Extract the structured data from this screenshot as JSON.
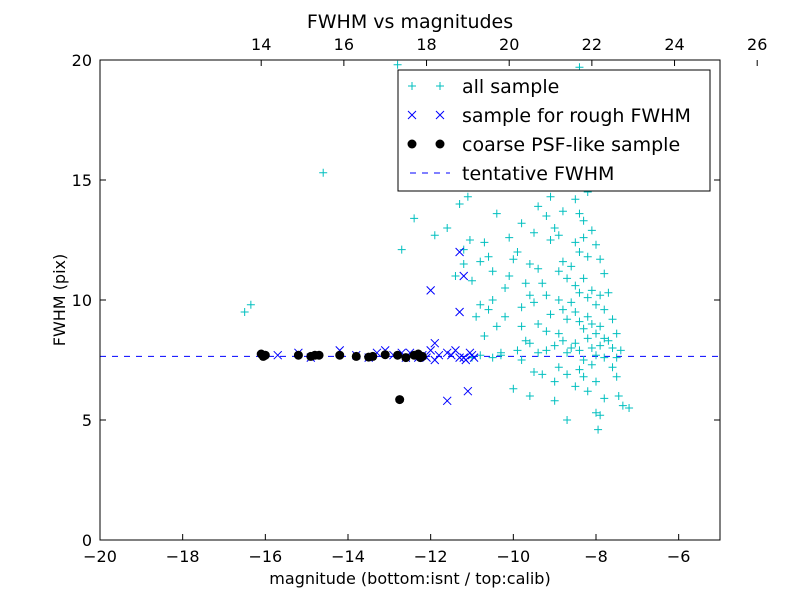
{
  "chart_data": {
    "type": "scatter",
    "title": "FWHM vs magnitudes",
    "xlabel": "magnitude (bottom:isnt / top:calib)",
    "ylabel": "FWHM (pix)",
    "xlim": [
      -20,
      -5
    ],
    "ylim": [
      0,
      20
    ],
    "x_ticks": [
      -20,
      -18,
      -16,
      -14,
      -12,
      -10,
      -8,
      -6
    ],
    "x_tick_labels": [
      "−20",
      "−18",
      "−16",
      "−14",
      "−12",
      "−10",
      "−8",
      "−6"
    ],
    "y_ticks": [
      0,
      5,
      10,
      15,
      20
    ],
    "y_tick_labels": [
      "0",
      "5",
      "10",
      "15",
      "20"
    ],
    "top_axis": {
      "ticks": [
        14,
        16,
        18,
        20,
        22,
        24,
        26
      ],
      "tick_labels": [
        "14",
        "16",
        "18",
        "20",
        "22",
        "24",
        "26"
      ],
      "offset": 30.1
    },
    "grid": false,
    "legend_position": "top-right",
    "series": [
      {
        "name": "all sample",
        "marker": "plus",
        "color": "#00bfbf",
        "points": [
          [
            -16.5,
            9.5
          ],
          [
            -16.35,
            9.8
          ],
          [
            -14.6,
            15.3
          ],
          [
            -12.4,
            13.4
          ],
          [
            -12.7,
            12.1
          ],
          [
            -12.8,
            19.8
          ],
          [
            -11.9,
            12.7
          ],
          [
            -11.6,
            13.0
          ],
          [
            -11.3,
            14.0
          ],
          [
            -11.1,
            14.3
          ],
          [
            -11.4,
            11.0
          ],
          [
            -11.2,
            11.5
          ],
          [
            -11.0,
            10.8
          ],
          [
            -11.05,
            12.5
          ],
          [
            -11.2,
            12.1
          ],
          [
            -10.8,
            11.6
          ],
          [
            -10.6,
            11.8
          ],
          [
            -10.5,
            11.2
          ],
          [
            -10.8,
            9.8
          ],
          [
            -10.5,
            10.0
          ],
          [
            -10.6,
            9.6
          ],
          [
            -10.9,
            9.3
          ],
          [
            -10.2,
            10.5
          ],
          [
            -10.1,
            11.0
          ],
          [
            -10.0,
            11.7
          ],
          [
            -9.9,
            12.0
          ],
          [
            -10.7,
            8.5
          ],
          [
            -10.4,
            8.9
          ],
          [
            -10.2,
            9.3
          ],
          [
            -9.8,
            9.7
          ],
          [
            -10.3,
            7.8
          ],
          [
            -9.9,
            7.9
          ],
          [
            -10.0,
            6.3
          ],
          [
            -9.8,
            7.5
          ],
          [
            -11.0,
            7.6
          ],
          [
            -10.8,
            7.7
          ],
          [
            -10.5,
            7.6
          ],
          [
            -10.3,
            7.7
          ],
          [
            -9.6,
            6.0
          ],
          [
            -9.5,
            7.0
          ],
          [
            -9.0,
            6.6
          ],
          [
            -9.3,
            6.9
          ],
          [
            -9.7,
            16.0
          ],
          [
            -9.5,
            17.0
          ],
          [
            -9.6,
            18.0
          ],
          [
            -9.3,
            19.0
          ],
          [
            -9.2,
            18.5
          ],
          [
            -9.0,
            15.8
          ],
          [
            -8.6,
            19.2
          ],
          [
            -8.4,
            19.7
          ],
          [
            -9.4,
            13.9
          ],
          [
            -9.2,
            13.5
          ],
          [
            -9.1,
            14.3
          ],
          [
            -9.5,
            12.8
          ],
          [
            -9.6,
            11.5
          ],
          [
            -9.4,
            11.3
          ],
          [
            -9.3,
            10.7
          ],
          [
            -9.2,
            10.2
          ],
          [
            -9.5,
            9.9
          ],
          [
            -9.4,
            9.0
          ],
          [
            -9.2,
            8.7
          ],
          [
            -9.1,
            9.4
          ],
          [
            -9.6,
            8.2
          ],
          [
            -9.4,
            7.8
          ],
          [
            -9.2,
            7.9
          ],
          [
            -9.0,
            8.1
          ],
          [
            -9.1,
            12.5
          ],
          [
            -9.0,
            13.0
          ],
          [
            -8.9,
            12.7
          ],
          [
            -8.8,
            13.7
          ],
          [
            -8.9,
            11.2
          ],
          [
            -8.8,
            11.6
          ],
          [
            -8.7,
            10.9
          ],
          [
            -8.6,
            11.4
          ],
          [
            -8.9,
            10.0
          ],
          [
            -8.8,
            9.6
          ],
          [
            -8.7,
            9.2
          ],
          [
            -8.6,
            9.9
          ],
          [
            -8.9,
            8.6
          ],
          [
            -8.8,
            8.3
          ],
          [
            -8.7,
            7.8
          ],
          [
            -8.6,
            8.0
          ],
          [
            -8.9,
            7.2
          ],
          [
            -8.7,
            6.9
          ],
          [
            -8.5,
            6.4
          ],
          [
            -8.4,
            7.1
          ],
          [
            -8.5,
            14.2
          ],
          [
            -8.4,
            13.6
          ],
          [
            -8.3,
            13.3
          ],
          [
            -8.2,
            14.5
          ],
          [
            -8.5,
            12.4
          ],
          [
            -8.4,
            12.0
          ],
          [
            -8.3,
            12.6
          ],
          [
            -8.2,
            11.8
          ],
          [
            -8.5,
            10.6
          ],
          [
            -8.4,
            10.3
          ],
          [
            -8.3,
            10.9
          ],
          [
            -8.2,
            10.1
          ],
          [
            -8.5,
            9.5
          ],
          [
            -8.4,
            9.1
          ],
          [
            -8.3,
            8.8
          ],
          [
            -8.2,
            9.3
          ],
          [
            -8.5,
            8.2
          ],
          [
            -8.4,
            7.9
          ],
          [
            -8.3,
            7.5
          ],
          [
            -8.2,
            8.4
          ],
          [
            -8.3,
            6.8
          ],
          [
            -8.2,
            6.2
          ],
          [
            -8.1,
            7.3
          ],
          [
            -8.0,
            6.6
          ],
          [
            -8.1,
            12.9
          ],
          [
            -8.0,
            12.3
          ],
          [
            -7.9,
            11.7
          ],
          [
            -7.8,
            11.1
          ],
          [
            -8.1,
            10.4
          ],
          [
            -8.0,
            9.8
          ],
          [
            -7.9,
            10.2
          ],
          [
            -7.8,
            9.6
          ],
          [
            -8.1,
            9.0
          ],
          [
            -8.0,
            8.6
          ],
          [
            -7.9,
            8.9
          ],
          [
            -7.8,
            8.4
          ],
          [
            -8.1,
            8.0
          ],
          [
            -8.0,
            7.7
          ],
          [
            -7.9,
            8.1
          ],
          [
            -7.8,
            7.6
          ],
          [
            -7.7,
            10.3
          ],
          [
            -7.6,
            9.2
          ],
          [
            -7.5,
            8.6
          ],
          [
            -7.7,
            8.3
          ],
          [
            -7.6,
            8.0
          ],
          [
            -7.5,
            7.6
          ],
          [
            -7.4,
            7.9
          ],
          [
            -7.6,
            7.2
          ],
          [
            -8.0,
            5.3
          ],
          [
            -7.9,
            5.2
          ],
          [
            -7.95,
            4.6
          ],
          [
            -7.5,
            6.8
          ],
          [
            -7.45,
            6.0
          ],
          [
            -7.35,
            5.6
          ],
          [
            -7.2,
            5.5
          ],
          [
            -7.8,
            5.9
          ],
          [
            -9.0,
            5.8
          ],
          [
            -8.7,
            5.0
          ],
          [
            -8.9,
            15.1
          ],
          [
            -8.6,
            15.5
          ],
          [
            -8.3,
            15.2
          ],
          [
            -8.1,
            14.7
          ],
          [
            -8.7,
            16.5
          ],
          [
            -8.4,
            16.0
          ],
          [
            -9.8,
            13.2
          ],
          [
            -10.1,
            12.6
          ],
          [
            -10.4,
            13.6
          ],
          [
            -10.7,
            12.4
          ],
          [
            -9.7,
            10.7
          ],
          [
            -9.6,
            10.2
          ],
          [
            -9.8,
            8.9
          ],
          [
            -9.7,
            8.3
          ]
        ]
      },
      {
        "name": "sample for rough FWHM",
        "marker": "x",
        "color": "#0000ff",
        "points": [
          [
            -15.7,
            7.7
          ],
          [
            -15.2,
            7.8
          ],
          [
            -14.9,
            7.6
          ],
          [
            -14.2,
            7.9
          ],
          [
            -13.8,
            7.7
          ],
          [
            -13.5,
            7.6
          ],
          [
            -13.3,
            7.8
          ],
          [
            -13.1,
            7.9
          ],
          [
            -12.9,
            7.7
          ],
          [
            -12.6,
            7.6
          ],
          [
            -12.5,
            7.8
          ],
          [
            -12.2,
            7.7
          ],
          [
            -12.0,
            7.9
          ],
          [
            -11.8,
            7.7
          ],
          [
            -11.9,
            8.2
          ],
          [
            -11.6,
            7.8
          ],
          [
            -11.5,
            7.7
          ],
          [
            -11.3,
            7.6
          ],
          [
            -11.2,
            7.6
          ],
          [
            -11.0,
            7.7
          ],
          [
            -11.15,
            7.5
          ],
          [
            -11.05,
            7.8
          ],
          [
            -10.95,
            7.6
          ],
          [
            -11.4,
            7.9
          ],
          [
            -11.9,
            7.5
          ],
          [
            -12.1,
            7.6
          ],
          [
            -12.3,
            7.6
          ],
          [
            -12.7,
            7.8
          ],
          [
            -12.0,
            10.4
          ],
          [
            -11.3,
            12.0
          ],
          [
            -11.2,
            11.0
          ],
          [
            -11.3,
            9.5
          ],
          [
            -11.6,
            5.8
          ],
          [
            -11.1,
            6.2
          ]
        ]
      },
      {
        "name": "coarse PSF-like sample",
        "marker": "circle",
        "color": "#000000",
        "points": [
          [
            -16.1,
            7.75
          ],
          [
            -16.05,
            7.65
          ],
          [
            -16.0,
            7.7
          ],
          [
            -15.2,
            7.7
          ],
          [
            -14.9,
            7.65
          ],
          [
            -14.8,
            7.7
          ],
          [
            -14.7,
            7.7
          ],
          [
            -14.2,
            7.7
          ],
          [
            -13.8,
            7.65
          ],
          [
            -13.5,
            7.62
          ],
          [
            -13.4,
            7.65
          ],
          [
            -13.1,
            7.72
          ],
          [
            -12.8,
            7.7
          ],
          [
            -12.6,
            7.6
          ],
          [
            -12.4,
            7.7
          ],
          [
            -12.3,
            7.75
          ],
          [
            -12.25,
            7.6
          ],
          [
            -12.2,
            7.65
          ],
          [
            -12.75,
            5.85
          ]
        ]
      }
    ],
    "reference_lines": [
      {
        "name": "tentative FWHM",
        "y": 7.65,
        "style": "dashed",
        "color": "#0000ff"
      }
    ]
  }
}
